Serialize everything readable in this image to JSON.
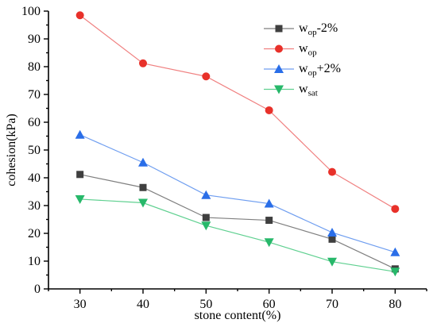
{
  "chart_data": {
    "type": "line",
    "xlabel": "stone content(%)",
    "ylabel": "cohesion(kPa)",
    "x": [
      30,
      40,
      50,
      60,
      70,
      80
    ],
    "xticks": [
      "30",
      "40",
      "50",
      "60",
      "70",
      "80"
    ],
    "xlim": [
      25,
      85
    ],
    "ylim": [
      0,
      100
    ],
    "yticks": [
      "0",
      "10",
      "20",
      "30",
      "40",
      "50",
      "60",
      "70",
      "80",
      "90",
      "100"
    ],
    "grid": false,
    "legend_position": "top-right",
    "series": [
      {
        "name": "wop-2%",
        "legend": {
          "base": "w",
          "sub": "op",
          "suffix": "-2%"
        },
        "marker": "square",
        "color": "#3f3f3f",
        "line_color": "#7f7f7f",
        "values": [
          41.2,
          36.5,
          25.7,
          24.7,
          17.9,
          7.2
        ]
      },
      {
        "name": "wop",
        "legend": {
          "base": "w",
          "sub": "op",
          "suffix": ""
        },
        "marker": "circle",
        "color": "#e8312a",
        "line_color": "#f08080",
        "values": [
          98.5,
          81.2,
          76.5,
          64.3,
          42.1,
          28.8
        ]
      },
      {
        "name": "wop+2%",
        "legend": {
          "base": "w",
          "sub": "op",
          "suffix": "+2%"
        },
        "marker": "triangle-up",
        "color": "#2a6ee8",
        "line_color": "#6f9ef0",
        "values": [
          55.5,
          45.5,
          33.8,
          30.7,
          20.3,
          13.2
        ]
      },
      {
        "name": "wsat",
        "legend": {
          "base": "w",
          "sub": "sat",
          "suffix": ""
        },
        "marker": "triangle-down",
        "color": "#27b86a",
        "line_color": "#5fd090",
        "values": [
          32.3,
          31.0,
          22.8,
          16.8,
          9.8,
          6.2
        ]
      }
    ]
  }
}
